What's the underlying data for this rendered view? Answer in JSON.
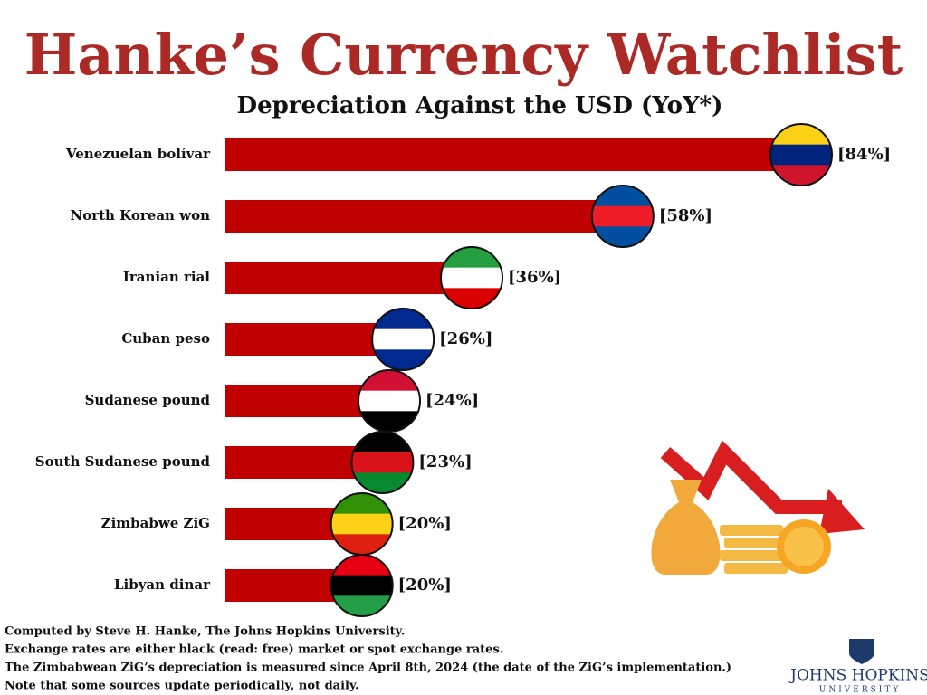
{
  "chart_data": {
    "type": "bar",
    "orientation": "horizontal",
    "title": "Hanke’s Currency Watchlist",
    "subtitle": "Depreciation Against the USD (YoY*)",
    "categories": [
      "Venezuelan bolívar",
      "North Korean won",
      "Iranian rial",
      "Cuban peso",
      "Sudanese pound",
      "South Sudanese pound",
      "Zimbabwe ZiG",
      "Libyan dinar"
    ],
    "values": [
      84,
      58,
      36,
      26,
      24,
      23,
      20,
      20
    ],
    "value_labels": [
      "[84%]",
      "[58%]",
      "[36%]",
      "[26%]",
      "[24%]",
      "[23%]",
      "[20%]",
      "[20%]"
    ],
    "color": "#c00000"
  },
  "footnotes": [
    "Computed by Steve H. Hanke, The Johns Hopkins University.",
    "Exchange rates are either black (read: free) market or spot exchange rates.",
    "The Zimbabwean ZiG’s depreciation is measured since April 8th, 2024 (the date of the ZiG’s implementation.)",
    "Note that some sources update periodically, not daily."
  ],
  "logo": {
    "name": "JOHNS HOPKINS",
    "sub": "UNIVERSITY"
  }
}
